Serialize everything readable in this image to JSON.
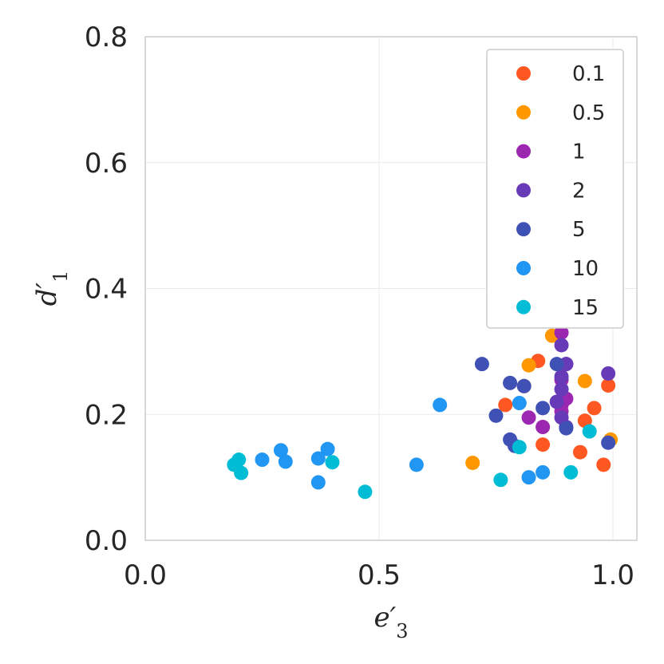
{
  "chart_data": {
    "type": "scatter",
    "xlabel": "e′3",
    "ylabel": "d′1",
    "xlim": [
      0.0,
      1.0
    ],
    "ylim": [
      0.0,
      0.8
    ],
    "x_ticks": [
      "0.0",
      "0.5",
      "1.0"
    ],
    "y_ticks": [
      "0.0",
      "0.2",
      "0.4",
      "0.6",
      "0.8"
    ],
    "grid": true,
    "legend_position": "top-right",
    "series": [
      {
        "name": "0.1",
        "color": "#FF5722",
        "points": [
          [
            0.77,
            0.215
          ],
          [
            0.81,
            0.245
          ],
          [
            0.84,
            0.285
          ],
          [
            0.85,
            0.152
          ],
          [
            0.93,
            0.14
          ],
          [
            0.94,
            0.19
          ],
          [
            0.96,
            0.21
          ],
          [
            0.98,
            0.12
          ],
          [
            0.99,
            0.246
          ]
        ]
      },
      {
        "name": "0.5",
        "color": "#FF9800",
        "points": [
          [
            0.7,
            0.123
          ],
          [
            0.82,
            0.278
          ],
          [
            0.87,
            0.325
          ],
          [
            0.94,
            0.253
          ],
          [
            0.995,
            0.16
          ]
        ]
      },
      {
        "name": "1",
        "color": "#9C27B0",
        "points": [
          [
            0.82,
            0.195
          ],
          [
            0.85,
            0.18
          ],
          [
            0.89,
            0.33
          ],
          [
            0.89,
            0.255
          ],
          [
            0.89,
            0.215
          ],
          [
            0.89,
            0.205
          ],
          [
            0.9,
            0.28
          ],
          [
            0.9,
            0.225
          ]
        ]
      },
      {
        "name": "2",
        "color": "#673AB7",
        "points": [
          [
            0.88,
            0.22
          ],
          [
            0.89,
            0.31
          ],
          [
            0.89,
            0.26
          ],
          [
            0.89,
            0.24
          ],
          [
            0.89,
            0.195
          ],
          [
            0.9,
            0.28
          ],
          [
            0.9,
            0.18
          ],
          [
            0.99,
            0.265
          ]
        ]
      },
      {
        "name": "5",
        "color": "#3F51B5",
        "points": [
          [
            0.72,
            0.28
          ],
          [
            0.75,
            0.198
          ],
          [
            0.78,
            0.25
          ],
          [
            0.78,
            0.16
          ],
          [
            0.79,
            0.15
          ],
          [
            0.81,
            0.245
          ],
          [
            0.85,
            0.21
          ],
          [
            0.88,
            0.28
          ],
          [
            0.9,
            0.178
          ],
          [
            0.99,
            0.155
          ]
        ]
      },
      {
        "name": "10",
        "color": "#2196F3",
        "points": [
          [
            0.25,
            0.128
          ],
          [
            0.29,
            0.143
          ],
          [
            0.3,
            0.125
          ],
          [
            0.37,
            0.13
          ],
          [
            0.37,
            0.092
          ],
          [
            0.39,
            0.145
          ],
          [
            0.58,
            0.12
          ],
          [
            0.63,
            0.215
          ],
          [
            0.8,
            0.218
          ],
          [
            0.82,
            0.1
          ],
          [
            0.85,
            0.108
          ]
        ]
      },
      {
        "name": "15",
        "color": "#00BCD4",
        "points": [
          [
            0.19,
            0.12
          ],
          [
            0.2,
            0.128
          ],
          [
            0.205,
            0.107
          ],
          [
            0.4,
            0.124
          ],
          [
            0.47,
            0.077
          ],
          [
            0.76,
            0.096
          ],
          [
            0.8,
            0.148
          ],
          [
            0.91,
            0.108
          ],
          [
            0.95,
            0.173
          ]
        ]
      }
    ]
  }
}
